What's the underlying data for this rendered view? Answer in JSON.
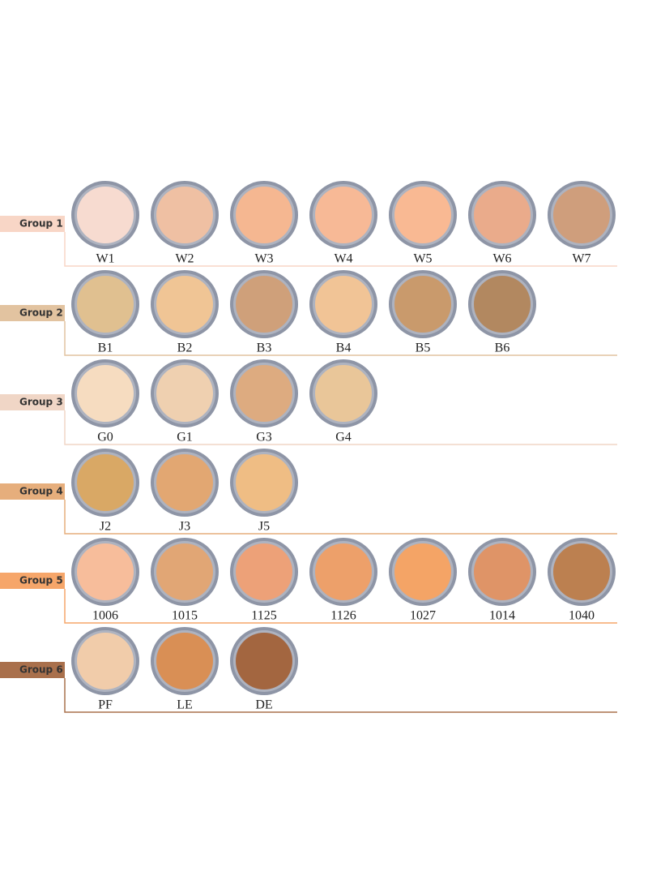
{
  "groups": [
    {
      "label": "Group 1",
      "color": "#f8d6c6",
      "swatches": [
        {
          "code": "W1",
          "color": "#f7dbd0"
        },
        {
          "code": "W2",
          "color": "#efc0a3"
        },
        {
          "code": "W3",
          "color": "#f5b791"
        },
        {
          "code": "W4",
          "color": "#f7b996"
        },
        {
          "code": "W5",
          "color": "#f9b993"
        },
        {
          "code": "W6",
          "color": "#eaab8b"
        },
        {
          "code": "W7",
          "color": "#cf9e7c"
        }
      ]
    },
    {
      "label": "Group 2",
      "color": "#e2c3a0",
      "swatches": [
        {
          "code": "B1",
          "color": "#e0c090"
        },
        {
          "code": "B2",
          "color": "#f0c595"
        },
        {
          "code": "B3",
          "color": "#cfa07a"
        },
        {
          "code": "B4",
          "color": "#f1c496"
        },
        {
          "code": "B5",
          "color": "#c99a6c"
        },
        {
          "code": "B6",
          "color": "#b28860"
        }
      ]
    },
    {
      "label": "Group 3",
      "color": "#f0d6c6",
      "swatches": [
        {
          "code": "G0",
          "color": "#f6dcc0"
        },
        {
          "code": "G1",
          "color": "#efd0b0"
        },
        {
          "code": "G3",
          "color": "#ddab80"
        },
        {
          "code": "G4",
          "color": "#e9c699"
        }
      ]
    },
    {
      "label": "Group 4",
      "color": "#e6ae7c",
      "swatches": [
        {
          "code": "J2",
          "color": "#d9a865"
        },
        {
          "code": "J3",
          "color": "#e2a772"
        },
        {
          "code": "J5",
          "color": "#efbd84"
        }
      ]
    },
    {
      "label": "Group 5",
      "color": "#f6a66a",
      "swatches": [
        {
          "code": "1006",
          "color": "#f7bd9b"
        },
        {
          "code": "1015",
          "color": "#e1a675"
        },
        {
          "code": "1125",
          "color": "#eda178"
        },
        {
          "code": "1126",
          "color": "#eda06a"
        },
        {
          "code": "1027",
          "color": "#f4a466"
        },
        {
          "code": "1014",
          "color": "#df9467"
        },
        {
          "code": "1040",
          "color": "#bc8050"
        }
      ]
    },
    {
      "label": "Group 6",
      "color": "#a9704c",
      "swatches": [
        {
          "code": "PF",
          "color": "#f1ccaa"
        },
        {
          "code": "LE",
          "color": "#d98f55"
        },
        {
          "code": "DE",
          "color": "#a36640"
        }
      ]
    }
  ]
}
